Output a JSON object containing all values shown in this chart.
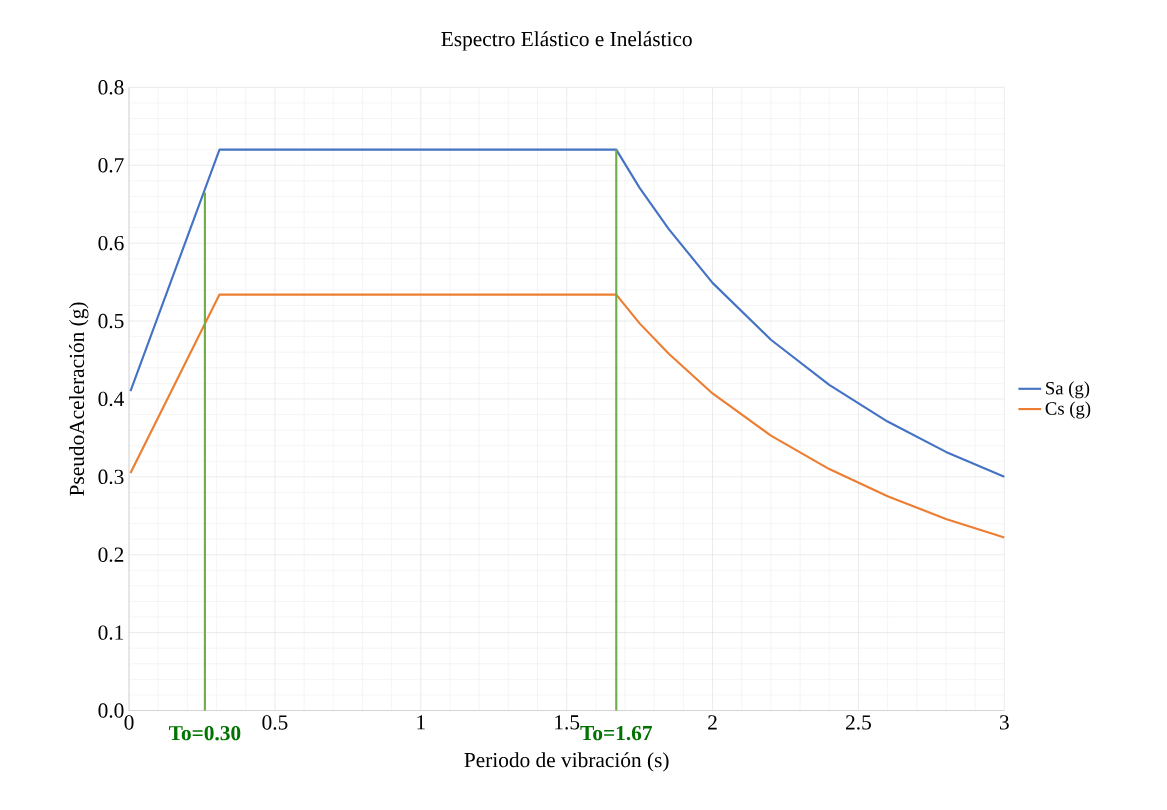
{
  "chart_data": {
    "type": "line",
    "title": "Espectro Elástico e Inelástico",
    "xlabel": "Periodo de vibración (s)",
    "ylabel": "PseudoAceleración (g)",
    "xlim": [
      0,
      3
    ],
    "ylim": [
      0,
      0.8
    ],
    "xticks": [
      0,
      0.5,
      1,
      1.5,
      2,
      2.5,
      3
    ],
    "yticks": [
      {
        "value": 0,
        "label": "0.0"
      },
      0.1,
      0.2,
      0.3,
      0.4,
      0.5,
      0.6,
      0.7,
      0.8
    ],
    "grid": true,
    "legend": "right",
    "marker": "none",
    "series": [
      {
        "name": "Sa (g)",
        "color": "#4472c4",
        "x": [
          0.005,
          0.31,
          1.67,
          1.75,
          1.85,
          2.0,
          2.2,
          2.4,
          2.6,
          2.8,
          3.0
        ],
        "values": [
          0.41,
          0.72,
          0.72,
          0.671,
          0.618,
          0.549,
          0.476,
          0.418,
          0.371,
          0.332,
          0.3
        ]
      },
      {
        "name": "Cs (g)",
        "color": "#ed7d31",
        "x": [
          0.005,
          0.31,
          1.67,
          1.75,
          1.85,
          2.0,
          2.2,
          2.4,
          2.6,
          2.8,
          3.0
        ],
        "values": [
          0.305,
          0.534,
          0.534,
          0.497,
          0.458,
          0.407,
          0.353,
          0.31,
          0.275,
          0.246,
          0.222
        ]
      },
      {
        "type": "line",
        "color": "#70ad47",
        "x": [
          0.26,
          0.26
        ],
        "values": [
          0,
          0.665
        ]
      },
      {
        "type": "line",
        "color": "#70ad47",
        "x": [
          1.67,
          1.67
        ],
        "values": [
          0,
          0.72
        ]
      }
    ],
    "annotations": [
      {
        "text": "To=0.30",
        "x": 0.26,
        "y": 0
      },
      {
        "text": "To=1.67",
        "x": 1.67,
        "y": 0
      }
    ]
  }
}
